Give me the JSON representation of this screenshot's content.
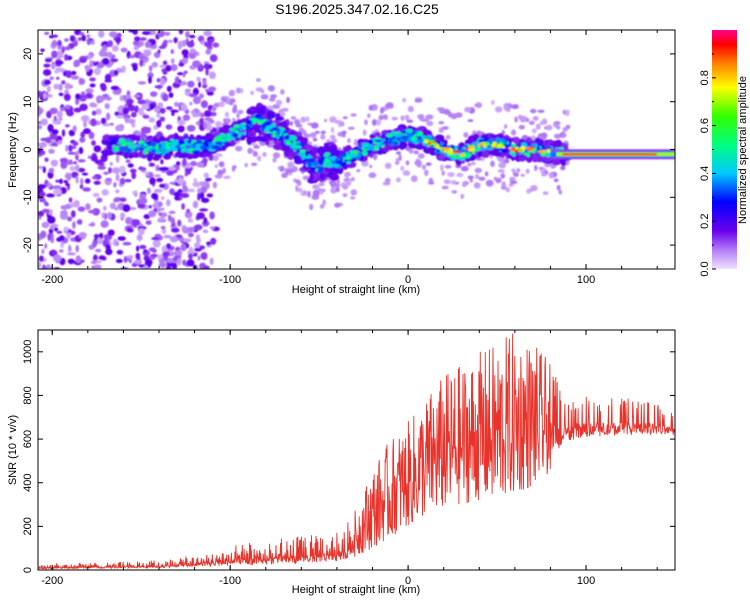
{
  "title": "S196.2025.347.02.16.C25",
  "chart_data": [
    {
      "type": "heatmap",
      "title": "S196.2025.347.02.16.C25",
      "xlabel": "Height of straight line (km)",
      "ylabel": "Frequency (Hz)",
      "xlim": [
        -208,
        150
      ],
      "ylim": [
        -25,
        25
      ],
      "xticks": [
        -200,
        -100,
        0,
        100
      ],
      "xtick_labels": [
        "-200",
        "-100",
        "0",
        "100"
      ],
      "yticks": [
        20,
        10,
        0,
        -10,
        -20
      ],
      "ytick_labels": [
        "20",
        "10",
        "0",
        "-10",
        "-20"
      ],
      "colorbar": {
        "label": "Normalized spectral amplitude",
        "range": [
          0,
          1
        ],
        "ticks": [
          0.0,
          0.2,
          0.4,
          0.6,
          0.8
        ],
        "tick_labels": [
          "0.0",
          "0.2",
          "0.4",
          "0.6",
          "0.8"
        ],
        "colormap": "rainbow"
      },
      "ridge_center_hz": [
        [
          -165,
          1
        ],
        [
          -150,
          0.5
        ],
        [
          -140,
          0
        ],
        [
          -130,
          1
        ],
        [
          -120,
          0.5
        ],
        [
          -110,
          1
        ],
        [
          -100,
          3
        ],
        [
          -90,
          5
        ],
        [
          -85,
          6
        ],
        [
          -80,
          5
        ],
        [
          -70,
          3
        ],
        [
          -60,
          0
        ],
        [
          -55,
          -3
        ],
        [
          -50,
          -4
        ],
        [
          -45,
          -2
        ],
        [
          -40,
          -3
        ],
        [
          -35,
          -2
        ],
        [
          -30,
          -1
        ],
        [
          -20,
          1
        ],
        [
          -10,
          2
        ],
        [
          0,
          3
        ],
        [
          10,
          2
        ],
        [
          20,
          0
        ],
        [
          30,
          -1
        ],
        [
          40,
          1
        ],
        [
          50,
          1
        ],
        [
          60,
          0
        ],
        [
          70,
          0
        ],
        [
          80,
          -0.5
        ],
        [
          90,
          -1
        ],
        [
          100,
          -1
        ],
        [
          120,
          -1
        ],
        [
          150,
          -1
        ]
      ],
      "strong_line": {
        "x_start": 80,
        "x_end": 150,
        "freq_hz": -1,
        "amplitude": 0.95
      }
    },
    {
      "type": "line",
      "xlabel": "Height of straight line (km)",
      "ylabel": "SNR (10 * v/v)",
      "xlim": [
        -208,
        150
      ],
      "ylim": [
        0,
        1100
      ],
      "xticks": [
        -200,
        -100,
        0,
        100
      ],
      "xtick_labels": [
        "-200",
        "-100",
        "0",
        "100"
      ],
      "yticks": [
        0,
        200,
        400,
        600,
        800,
        1000
      ],
      "ytick_labels": [
        "0",
        "200",
        "400",
        "600",
        "800",
        "1000"
      ],
      "color": "#e8322a",
      "envelope": {
        "x": [
          -208,
          -170,
          -140,
          -120,
          -100,
          -80,
          -60,
          -40,
          -30,
          -20,
          -10,
          0,
          10,
          20,
          30,
          40,
          50,
          60,
          70,
          80,
          90,
          100,
          110,
          120,
          130,
          140,
          150
        ],
        "low": [
          5,
          8,
          10,
          15,
          20,
          25,
          30,
          40,
          60,
          100,
          150,
          200,
          250,
          280,
          300,
          320,
          320,
          350,
          380,
          450,
          550,
          580,
          580,
          590,
          590,
          600,
          600
        ],
        "high": [
          30,
          35,
          45,
          70,
          110,
          140,
          160,
          170,
          270,
          470,
          600,
          680,
          800,
          900,
          950,
          1000,
          1050,
          1100,
          1050,
          950,
          800,
          800,
          790,
          790,
          780,
          760,
          720
        ]
      }
    }
  ]
}
